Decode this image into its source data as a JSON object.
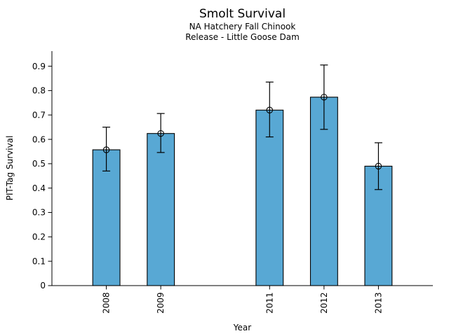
{
  "chart_data": {
    "type": "bar",
    "title": "Smolt Survival",
    "subtitle_lines": [
      "NA Hatchery Fall Chinook",
      "Release - Little Goose Dam"
    ],
    "xlabel": "Year",
    "ylabel": "PIT-Tag Survival",
    "categories": [
      "2008",
      "2009",
      "2011",
      "2012",
      "2013"
    ],
    "x_values": [
      2008,
      2009,
      2011,
      2012,
      2013
    ],
    "values": [
      0.557,
      0.624,
      0.72,
      0.773,
      0.49
    ],
    "error_low": [
      0.47,
      0.546,
      0.61,
      0.641,
      0.394
    ],
    "error_high": [
      0.65,
      0.706,
      0.835,
      0.905,
      0.586
    ],
    "ytick_values": [
      0,
      0.1,
      0.2,
      0.3,
      0.4,
      0.5,
      0.6,
      0.7,
      0.8,
      0.9
    ],
    "ytick_labels": [
      "0",
      "0.1",
      "0.2",
      "0.3",
      "0.4",
      "0.5",
      "0.6",
      "0.7",
      "0.8",
      "0.9"
    ],
    "xlim": [
      2007,
      2014
    ],
    "ylim": [
      0,
      0.962
    ],
    "bar_width_in_years": 0.5,
    "grid": false,
    "legend": null,
    "marker": "open-circle",
    "colors": {
      "bar_fill": "#58A8D4",
      "bar_edge": "#000000",
      "error_bar": "#000000",
      "marker_edge": "#000000",
      "axis": "#000000",
      "text": "#000000"
    }
  }
}
